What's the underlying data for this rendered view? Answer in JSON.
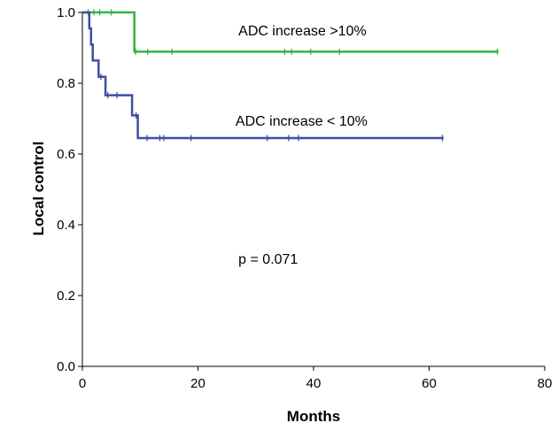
{
  "chart_data": {
    "type": "line",
    "subtype": "kaplan-meier",
    "title": "",
    "xlabel": "Months",
    "ylabel": "Local control",
    "xlim": [
      0,
      80
    ],
    "ylim": [
      0,
      1
    ],
    "x_ticks": [
      0,
      20,
      40,
      60,
      80
    ],
    "x_tick_labels": [
      "0",
      "20",
      "40",
      "60",
      "80"
    ],
    "y_ticks": [
      0,
      0.2,
      0.4,
      0.6,
      0.8,
      1.0
    ],
    "y_tick_labels": [
      "0.0",
      "0.2",
      "0.4",
      "0.6",
      "0.8",
      "1.0"
    ],
    "grid": false,
    "series": [
      {
        "name": "ADC increase >10%",
        "color": "#33b540",
        "steps": [
          [
            0,
            1.0
          ],
          [
            9,
            1.0
          ],
          [
            9,
            0.889
          ],
          [
            72,
            0.889
          ]
        ],
        "censored": [
          [
            1,
            1.0
          ],
          [
            2,
            1.0
          ],
          [
            3,
            1.0
          ],
          [
            5,
            1.0
          ],
          [
            9.2,
            0.889
          ],
          [
            11.3,
            0.889
          ],
          [
            15.5,
            0.889
          ],
          [
            35,
            0.889
          ],
          [
            36.2,
            0.889
          ],
          [
            39.5,
            0.889
          ],
          [
            44.5,
            0.889
          ],
          [
            71.8,
            0.889
          ]
        ],
        "label": "ADC increase >10%",
        "label_at": [
          27,
          0.935
        ]
      },
      {
        "name": "ADC increase < 10%",
        "color": "#3f4ea3",
        "steps": [
          [
            0,
            1.0
          ],
          [
            1.2,
            1.0
          ],
          [
            1.2,
            0.955
          ],
          [
            1.5,
            0.955
          ],
          [
            1.5,
            0.909
          ],
          [
            1.8,
            0.909
          ],
          [
            1.8,
            0.864
          ],
          [
            2.8,
            0.864
          ],
          [
            2.8,
            0.818
          ],
          [
            4,
            0.818
          ],
          [
            4,
            0.766
          ],
          [
            8.6,
            0.766
          ],
          [
            8.6,
            0.709
          ],
          [
            9.6,
            0.709
          ],
          [
            9.6,
            0.645
          ],
          [
            62.5,
            0.645
          ]
        ],
        "censored": [
          [
            3.2,
            0.818
          ],
          [
            4.4,
            0.766
          ],
          [
            6,
            0.766
          ],
          [
            9.3,
            0.709
          ],
          [
            11.2,
            0.645
          ],
          [
            13.4,
            0.645
          ],
          [
            14.1,
            0.645
          ],
          [
            18.8,
            0.645
          ],
          [
            32,
            0.645
          ],
          [
            35.7,
            0.645
          ],
          [
            37.4,
            0.645
          ],
          [
            62.3,
            0.645
          ]
        ],
        "label": "ADC increase < 10%",
        "label_at": [
          26.5,
          0.68
        ]
      }
    ],
    "annotations": [
      {
        "text": "p = 0.071",
        "at": [
          27,
          0.29
        ]
      }
    ]
  }
}
